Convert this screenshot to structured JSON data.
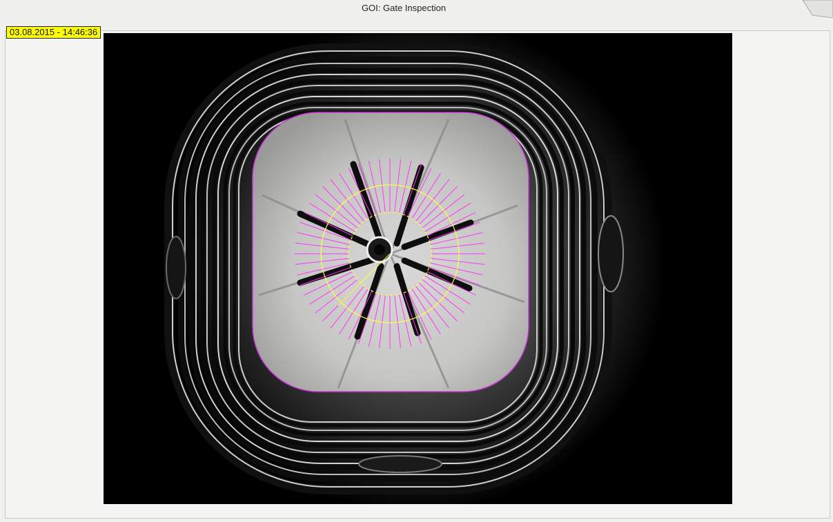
{
  "window": {
    "title": "GOI: Gate Inspection"
  },
  "image_view": {
    "timestamp": "03.08.2015 - 14:46:36",
    "overlay_colors": {
      "roi_outline": "#cc33dd",
      "radial_probes": "#ff33ff",
      "inner_circles": "#ffff44"
    },
    "radial_probe_count": 56
  }
}
